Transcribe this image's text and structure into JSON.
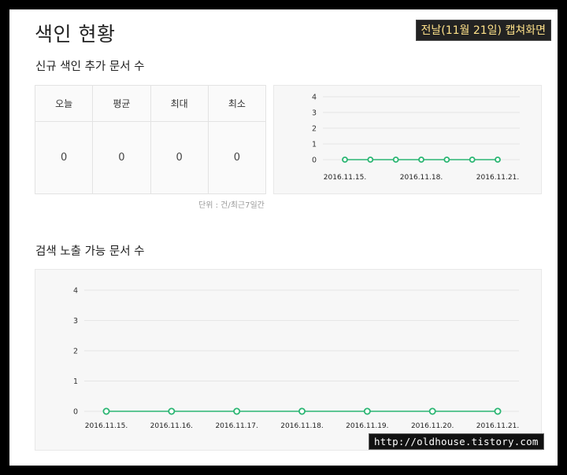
{
  "page": {
    "title": "색인 현황",
    "capture_badge": "전날(11월 21일) 캡쳐화면",
    "watermark": "http://oldhouse.tistory.com"
  },
  "section1": {
    "title": "신규 색인 추가 문서 수",
    "table": {
      "headers": [
        "오늘",
        "평균",
        "최대",
        "최소"
      ],
      "values": [
        "0",
        "0",
        "0",
        "0"
      ]
    },
    "unit_note": "단위 : 건/최근7일간"
  },
  "section2": {
    "title": "검색 노출 가능 문서 수"
  },
  "colors": {
    "line": "#2bb673",
    "point_fill": "#ffffff",
    "grid": "#e6e6e6"
  },
  "chart_data": [
    {
      "type": "line",
      "x": [
        "2016.11.15.",
        "2016.11.16.",
        "2016.11.17.",
        "2016.11.18.",
        "2016.11.19.",
        "2016.11.20.",
        "2016.11.21."
      ],
      "x_tick_labels": [
        "2016.11.15.",
        "2016.11.18.",
        "2016.11.21."
      ],
      "series": [
        {
          "values": [
            0,
            0,
            0,
            0,
            0,
            0,
            0
          ]
        }
      ],
      "y_ticks": [
        "0",
        "1",
        "2",
        "3",
        "4"
      ],
      "ylim": [
        0,
        4
      ],
      "grid": true
    },
    {
      "type": "line",
      "x": [
        "2016.11.15.",
        "2016.11.16.",
        "2016.11.17.",
        "2016.11.18.",
        "2016.11.19.",
        "2016.11.20.",
        "2016.11.21."
      ],
      "x_tick_labels": [
        "2016.11.15.",
        "2016.11.16.",
        "2016.11.17.",
        "2016.11.18.",
        "2016.11.19.",
        "2016.11.20.",
        "2016.11.21."
      ],
      "series": [
        {
          "values": [
            0,
            0,
            0,
            0,
            0,
            0,
            0
          ]
        }
      ],
      "y_ticks": [
        "0",
        "1",
        "2",
        "3",
        "4"
      ],
      "ylim": [
        0,
        4
      ],
      "grid": true
    }
  ]
}
